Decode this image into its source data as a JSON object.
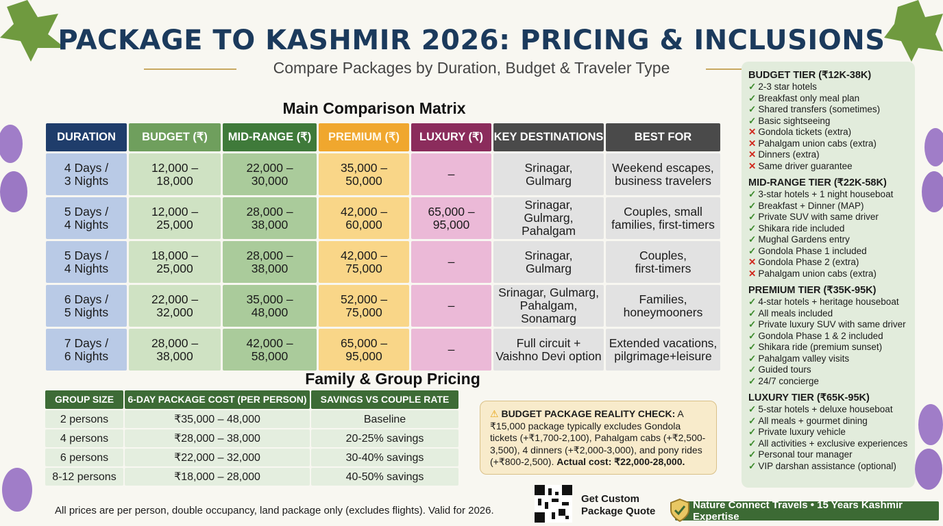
{
  "header": {
    "title": "PACKAGE TO KASHMIR 2026: PRICING & INCLUSIONS",
    "subtitle": "Compare Packages by Duration, Budget & Traveler Type"
  },
  "matrix": {
    "heading": "Main Comparison Matrix",
    "columns": [
      "DURATION",
      "BUDGET (₹)",
      "MID-RANGE (₹)",
      "PREMIUM (₹)",
      "LUXURY (₹)",
      "KEY DESTINATIONS",
      "BEST FOR"
    ],
    "header_colors": [
      "#1f3d6b",
      "#6f9f5d",
      "#3f7a3a",
      "#f0a72e",
      "#8b2c5c",
      "#4a4a4a",
      "#4a4a4a"
    ],
    "cell_colors": [
      "#b9cae6",
      "#cfe2c3",
      "#aacb9b",
      "#f9d688",
      "#ebb9d7",
      "#e2e2e2",
      "#e2e2e2"
    ],
    "rows": [
      [
        "4 Days /\n3 Nights",
        "12,000 –\n18,000",
        "22,000 –\n30,000",
        "35,000 –\n50,000",
        "–",
        "Srinagar,\nGulmarg",
        "Weekend escapes,\nbusiness travelers"
      ],
      [
        "5 Days /\n4 Nights",
        "12,000 –\n25,000",
        "28,000 –\n38,000",
        "42,000 –\n60,000",
        "65,000 –\n95,000",
        "Srinagar,\nGulmarg,\nPahalgam",
        "Couples, small\nfamilies, first-timers"
      ],
      [
        "5 Days /\n4 Nights",
        "18,000 –\n25,000",
        "28,000 –\n38,000",
        "42,000 –\n75,000",
        "–",
        "Srinagar,\nGulmarg",
        "Couples,\nfirst-timers"
      ],
      [
        "6 Days /\n5 Nights",
        "22,000 –\n32,000",
        "35,000 –\n48,000",
        "52,000 –\n75,000",
        "–",
        "Srinagar, Gulmarg,\nPahalgam,\nSonamarg",
        "Families,\nhoneymooners"
      ],
      [
        "7 Days /\n6 Nights",
        "28,000 –\n38,000",
        "42,000 –\n58,000",
        "65,000 –\n95,000",
        "–",
        "Full circuit +\nVaishno Devi option",
        "Extended vacations,\npilgrimage+leisure"
      ]
    ]
  },
  "family": {
    "heading": "Family & Group Pricing",
    "columns": [
      "GROUP SIZE",
      "6-DAY PACKAGE COST (PER PERSON)",
      "SAVINGS VS COUPLE RATE"
    ],
    "header_color": "#3d6b36",
    "row_color": "#e4eedf",
    "rows": [
      [
        "2 persons",
        "₹35,000 – 48,000",
        "Baseline"
      ],
      [
        "4 persons",
        "₹28,000 – 38,000",
        "20-25% savings"
      ],
      [
        "6 persons",
        "₹22,000 – 32,000",
        "30-40% savings"
      ],
      [
        "8-12 persons",
        "₹18,000 – 28,000",
        "40-50% savings"
      ]
    ]
  },
  "tiers": [
    {
      "title": "BUDGET TIER (₹12K-38K)",
      "items": [
        {
          "ok": true,
          "text": "2-3 star hotels"
        },
        {
          "ok": true,
          "text": "Breakfast only meal plan"
        },
        {
          "ok": true,
          "text": "Shared transfers (sometimes)"
        },
        {
          "ok": true,
          "text": "Basic sightseeing"
        },
        {
          "ok": false,
          "text": "Gondola tickets (extra)"
        },
        {
          "ok": false,
          "text": "Pahalgam union cabs (extra)"
        },
        {
          "ok": false,
          "text": "Dinners (extra)"
        },
        {
          "ok": false,
          "text": "Same driver guarantee"
        }
      ]
    },
    {
      "title": "MID-RANGE TIER (₹22K-58K)",
      "items": [
        {
          "ok": true,
          "text": "3-star hotels + 1 night houseboat"
        },
        {
          "ok": true,
          "text": "Breakfast + Dinner (MAP)"
        },
        {
          "ok": true,
          "text": "Private SUV with same driver"
        },
        {
          "ok": true,
          "text": "Shikara ride included"
        },
        {
          "ok": true,
          "text": "Mughal Gardens entry"
        },
        {
          "ok": true,
          "text": "Gondola Phase 1 included"
        },
        {
          "ok": false,
          "text": "Gondola Phase 2 (extra)"
        },
        {
          "ok": false,
          "text": "Pahalgam union cabs (extra)"
        }
      ]
    },
    {
      "title": "PREMIUM TIER (₹35K-95K)",
      "items": [
        {
          "ok": true,
          "text": "4-star hotels + heritage houseboat"
        },
        {
          "ok": true,
          "text": "All meals included"
        },
        {
          "ok": true,
          "text": "Private luxury SUV with same driver"
        },
        {
          "ok": true,
          "text": "Gondola Phase 1 & 2 included"
        },
        {
          "ok": true,
          "text": "Shikara ride (premium sunset)"
        },
        {
          "ok": true,
          "text": "Pahalgam valley visits"
        },
        {
          "ok": true,
          "text": "Guided tours"
        },
        {
          "ok": true,
          "text": "24/7 concierge"
        }
      ]
    },
    {
      "title": "LUXURY TIER (₹65K-95K)",
      "items": [
        {
          "ok": true,
          "text": "5-star hotels + deluxe houseboat"
        },
        {
          "ok": true,
          "text": "All meals + gourmet dining"
        },
        {
          "ok": true,
          "text": "Private luxury vehicle"
        },
        {
          "ok": true,
          "text": "All activities + exclusive experiences"
        },
        {
          "ok": true,
          "text": "Personal tour manager"
        },
        {
          "ok": true,
          "text": "VIP darshan assistance (optional)"
        }
      ]
    }
  ],
  "reality": {
    "icon": "warning-icon",
    "label": "BUDGET PACKAGE REALITY CHECK:",
    "body": " A ₹15,000 package typically excludes Gondola tickets (+₹1,700-2,100), Pahalgam cabs (+₹2,500-3,500), 4 dinners (+₹2,000-3,000), and pony rides (+₹800-2,500). ",
    "actual": "Actual cost: ₹22,000-28,000."
  },
  "footer": {
    "note": "All prices are per person, double occupancy, land package only (excludes flights). Valid for 2026.",
    "quote": "Get Custom Package Quote",
    "brand": "Nature Connect Travels • 15 Years Kashmir Expertise",
    "qr_icon": "qr-code-icon",
    "badge_icon": "shield-check-icon"
  }
}
